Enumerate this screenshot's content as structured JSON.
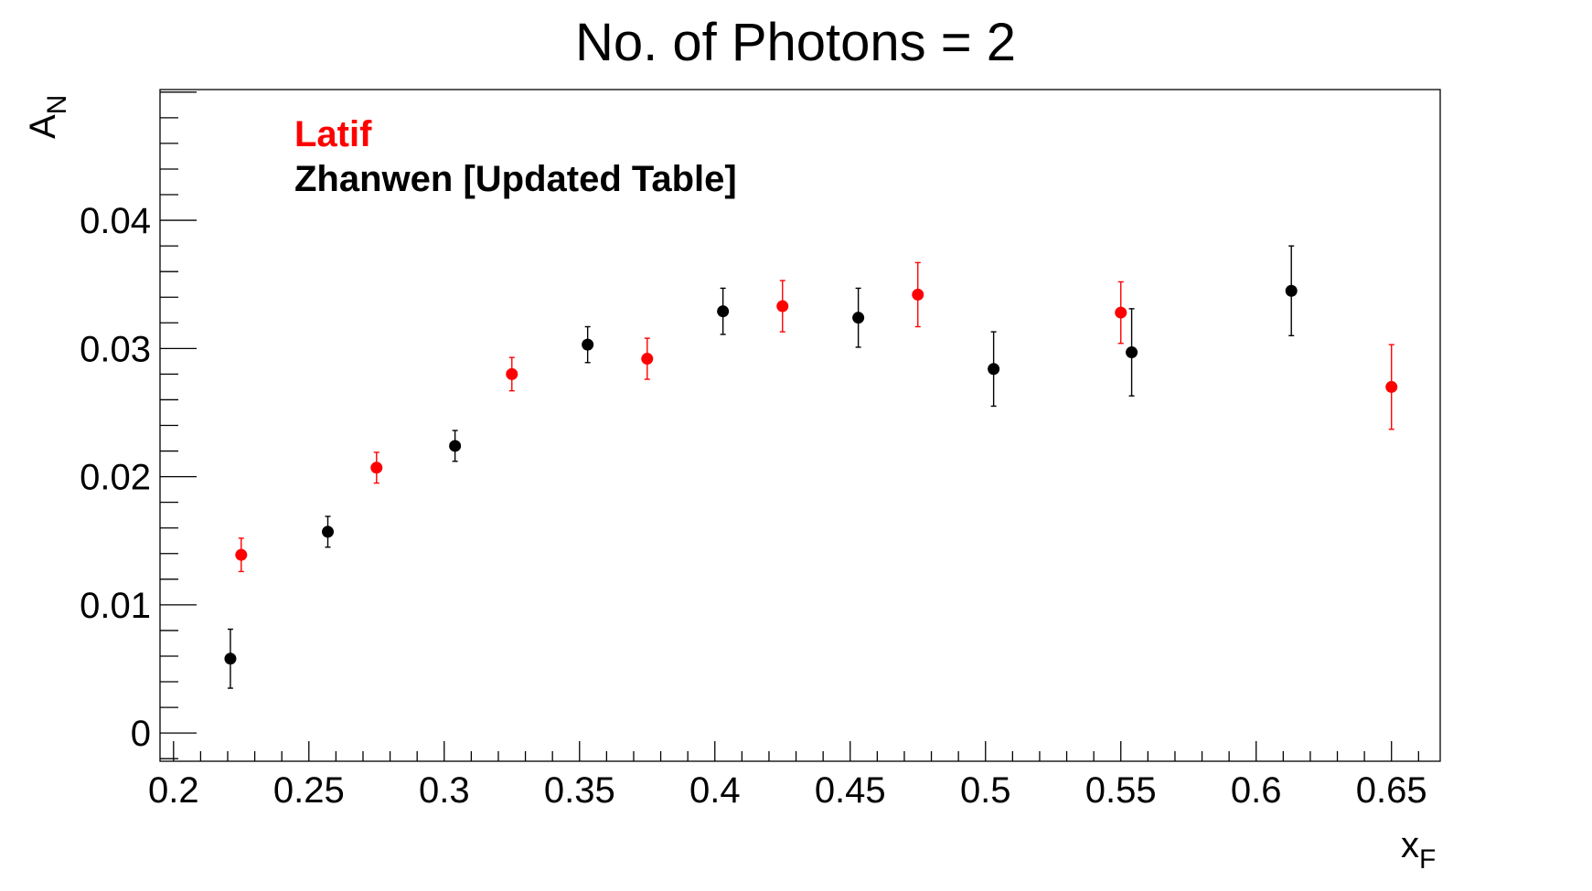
{
  "chart_data": {
    "type": "scatter",
    "title": "No. of Photons = 2",
    "xlabel": "x",
    "xlabel_sub": "F",
    "ylabel": "A",
    "ylabel_sub": "N",
    "xlim": [
      0.195,
      0.668
    ],
    "ylim": [
      -0.0022,
      0.0502
    ],
    "x_ticks": [
      "0.2",
      "0.25",
      "0.3",
      "0.35",
      "0.4",
      "0.45",
      "0.5",
      "0.55",
      "0.6",
      "0.65"
    ],
    "y_ticks": [
      "0",
      "0.01",
      "0.02",
      "0.03",
      "0.04"
    ],
    "grid": false,
    "legend_position": "top-left",
    "series": [
      {
        "name": "Latif",
        "color": "#ff0000",
        "points": [
          {
            "x": 0.225,
            "y": 0.0139,
            "err": 0.0013
          },
          {
            "x": 0.275,
            "y": 0.0207,
            "err": 0.0012
          },
          {
            "x": 0.325,
            "y": 0.028,
            "err": 0.0013
          },
          {
            "x": 0.375,
            "y": 0.0292,
            "err": 0.0016
          },
          {
            "x": 0.425,
            "y": 0.0333,
            "err": 0.002
          },
          {
            "x": 0.475,
            "y": 0.0342,
            "err": 0.0025
          },
          {
            "x": 0.55,
            "y": 0.0328,
            "err": 0.0024
          },
          {
            "x": 0.65,
            "y": 0.027,
            "err": 0.0033
          }
        ]
      },
      {
        "name": "Zhanwen [Updated Table]",
        "color": "#000000",
        "points": [
          {
            "x": 0.221,
            "y": 0.0058,
            "err": 0.0023
          },
          {
            "x": 0.257,
            "y": 0.0157,
            "err": 0.0012
          },
          {
            "x": 0.304,
            "y": 0.0224,
            "err": 0.0012
          },
          {
            "x": 0.353,
            "y": 0.0303,
            "err": 0.0014
          },
          {
            "x": 0.403,
            "y": 0.0329,
            "err": 0.0018
          },
          {
            "x": 0.453,
            "y": 0.0324,
            "err": 0.0023
          },
          {
            "x": 0.503,
            "y": 0.0284,
            "err": 0.0029
          },
          {
            "x": 0.554,
            "y": 0.0297,
            "err": 0.0034
          },
          {
            "x": 0.613,
            "y": 0.0345,
            "err": 0.0035
          }
        ]
      }
    ]
  }
}
